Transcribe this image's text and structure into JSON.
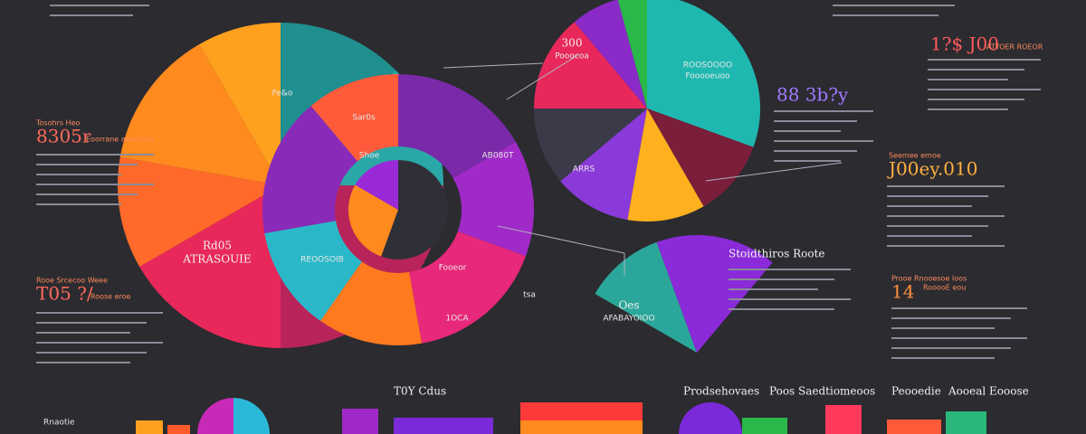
{
  "left_blocks": [
    {
      "subtitle": "Tosohrs Heo",
      "title": "8305r",
      "caption": "Eoorrane aeensroe"
    },
    {
      "subtitle": "Rooe Srcecoo Weee",
      "title": "T05 ?/",
      "caption": "Roose eroe"
    }
  ],
  "right_blocks": [
    {
      "title": "1?$ J00",
      "caption": "ATYOER ROEOR"
    },
    {
      "title": "88 3b?y"
    },
    {
      "subtitle": "Seemee emoe",
      "title": "J00ey.010"
    },
    {
      "subtitle": "Prooe Rnooesoe Ioos",
      "title": "14",
      "caption": "RooooE eou"
    }
  ],
  "chart_labels": {
    "left_pie_top": "Fe&o",
    "left_pie_center": "Rd05",
    "left_pie_bottom": "ATRASOUIE",
    "ring_top": "Sar0s",
    "ring_inner": "Shoe",
    "ring_small": "AB080T",
    "ring_left": "REOOSOIB",
    "ring_right": "Fooeor",
    "ring_bottom": "1OCA",
    "right_pie_top": "300",
    "right_pie_top_caption": "Pooocoa",
    "right_pie_right": "ROOSOOOO",
    "right_pie_right_caption": "Fooooeuoo",
    "right_pie_center": "ARRS",
    "fan_label": "Oes",
    "fan_caption": "AFABAYOIOO",
    "side_label": "tsa",
    "legend_title": "Stoidthiros Roote"
  },
  "bottom_labels": [
    "Rnaotie",
    "T0Y Cdus",
    "Prodsehovaes",
    "Poos Saedtiomeoos",
    "Peooedie",
    "Aooeal Eooose"
  ]
}
